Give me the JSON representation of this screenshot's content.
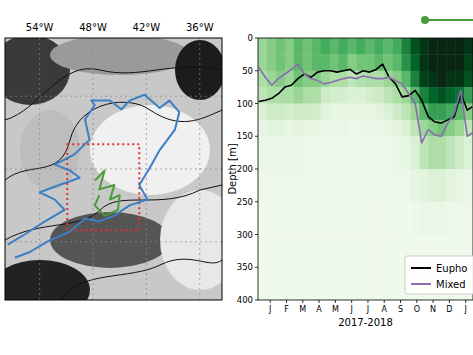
{
  "chart_data": [
    {
      "type": "map",
      "xlim": [
        -57.9,
        -33.5
      ],
      "ylim": [
        46,
        64
      ],
      "xticks": [
        {
          "value": -54,
          "label": "54°W"
        },
        {
          "value": -48,
          "label": "48°W"
        },
        {
          "value": -42,
          "label": "42°W"
        },
        {
          "value": -36,
          "label": "36°W"
        }
      ],
      "yticks": [
        50,
        55,
        60
      ],
      "tick_labels": "x",
      "grid": true,
      "series": [
        {
          "type": "line",
          "color": "#3b7fc4",
          "lon": [
            -57.6,
            -55.7,
            -53.4,
            -51.2,
            -52.3,
            -54.0,
            -51.8,
            -49.5,
            -50.6,
            -52.3,
            -50.1,
            -48.4,
            -48.9,
            -47.8,
            -48.2,
            -46.1,
            -44.8,
            -43.9,
            -42.2,
            -40.5,
            -39.4,
            -38.3,
            -38.8,
            -40.5,
            -41.6,
            -42.8,
            -41.9,
            -43.9,
            -45.6,
            -47.3,
            -48.9,
            -50.6,
            -52.9,
            -55.1,
            -56.8
          ],
          "lat": [
            49.8,
            50.5,
            51.4,
            52.2,
            52.9,
            53.4,
            53.9,
            54.4,
            54.9,
            55.3,
            56.0,
            57.0,
            58.4,
            59.4,
            59.7,
            59.7,
            59.1,
            59.7,
            60.1,
            59.2,
            59.7,
            58.9,
            57.7,
            56.3,
            55.1,
            53.9,
            52.9,
            52.5,
            51.8,
            51.4,
            51.6,
            50.7,
            50.1,
            49.3,
            48.9
          ]
        },
        {
          "type": "line",
          "color": "#4a9a3a",
          "lon": [
            -47.8,
            -46.7,
            -47.3,
            -45.6,
            -46.1,
            -45.0,
            -45.2,
            -46.7,
            -47.8,
            -47.3
          ],
          "lat": [
            54.2,
            54.9,
            53.6,
            53.9,
            52.9,
            53.2,
            52.2,
            51.8,
            52.5,
            53.2
          ]
        }
      ],
      "box": {
        "lon": [
          -50.9,
          -42.8
        ],
        "lat": [
          50.8,
          56.7
        ],
        "color": "#e03030",
        "line_style": "dotted"
      }
    },
    {
      "type": "heatmap",
      "xlabel": "2017-2018",
      "ylabel": "Depth [m]",
      "xlim": [
        -0.75,
        12.45
      ],
      "ylim": [
        400,
        0
      ],
      "xticks": [
        {
          "value": 0,
          "label": "J"
        },
        {
          "value": 1,
          "label": "F"
        },
        {
          "value": 2,
          "label": "M"
        },
        {
          "value": 3,
          "label": "A"
        },
        {
          "value": 4,
          "label": "M"
        },
        {
          "value": 5,
          "label": "J"
        },
        {
          "value": 6,
          "label": "J"
        },
        {
          "value": 7,
          "label": "A"
        },
        {
          "value": 8,
          "label": "S"
        },
        {
          "value": 9,
          "label": "O"
        },
        {
          "value": 10,
          "label": "N"
        },
        {
          "value": 11,
          "label": "D"
        },
        {
          "value": 12,
          "label": "J"
        }
      ],
      "yticks": [
        0,
        50,
        100,
        150,
        200,
        250,
        300,
        350,
        400
      ],
      "legend": "lower right",
      "x_edges": [
        -0.75,
        -0.2,
        0.35,
        0.9,
        1.45,
        2,
        2.55,
        3.1,
        3.65,
        4.2,
        4.75,
        5.3,
        5.85,
        6.4,
        6.95,
        7.5,
        8.05,
        8.6,
        9.15,
        9.7,
        10.25,
        10.8,
        11.35,
        11.9,
        12.45
      ],
      "y_edges": [
        0,
        25,
        50,
        75,
        100,
        125,
        150,
        200,
        250,
        300,
        400
      ],
      "z": [
        [
          0.35,
          0.35,
          0.3,
          0.25,
          0.15,
          0.1,
          0.08,
          0.06,
          0.05,
          0.05
        ],
        [
          0.4,
          0.4,
          0.35,
          0.3,
          0.2,
          0.12,
          0.08,
          0.06,
          0.05,
          0.05
        ],
        [
          0.45,
          0.45,
          0.4,
          0.3,
          0.2,
          0.12,
          0.08,
          0.06,
          0.05,
          0.05
        ],
        [
          0.4,
          0.4,
          0.35,
          0.3,
          0.18,
          0.1,
          0.08,
          0.06,
          0.05,
          0.05
        ],
        [
          0.5,
          0.5,
          0.45,
          0.35,
          0.2,
          0.12,
          0.08,
          0.06,
          0.05,
          0.05
        ],
        [
          0.45,
          0.45,
          0.4,
          0.3,
          0.2,
          0.1,
          0.07,
          0.06,
          0.05,
          0.05
        ],
        [
          0.5,
          0.5,
          0.4,
          0.3,
          0.18,
          0.1,
          0.07,
          0.06,
          0.05,
          0.05
        ],
        [
          0.55,
          0.5,
          0.35,
          0.2,
          0.12,
          0.08,
          0.06,
          0.05,
          0.05,
          0.05
        ],
        [
          0.5,
          0.45,
          0.3,
          0.18,
          0.1,
          0.08,
          0.06,
          0.05,
          0.05,
          0.05
        ],
        [
          0.55,
          0.5,
          0.3,
          0.18,
          0.1,
          0.08,
          0.06,
          0.05,
          0.05,
          0.05
        ],
        [
          0.5,
          0.4,
          0.25,
          0.15,
          0.1,
          0.07,
          0.06,
          0.05,
          0.05,
          0.05
        ],
        [
          0.55,
          0.45,
          0.28,
          0.15,
          0.1,
          0.07,
          0.06,
          0.05,
          0.05,
          0.05
        ],
        [
          0.5,
          0.45,
          0.3,
          0.18,
          0.1,
          0.08,
          0.06,
          0.05,
          0.05,
          0.05
        ],
        [
          0.55,
          0.5,
          0.3,
          0.2,
          0.12,
          0.08,
          0.06,
          0.05,
          0.05,
          0.05
        ],
        [
          0.5,
          0.45,
          0.35,
          0.25,
          0.15,
          0.1,
          0.07,
          0.06,
          0.05,
          0.05
        ],
        [
          0.55,
          0.5,
          0.4,
          0.3,
          0.2,
          0.12,
          0.08,
          0.06,
          0.05,
          0.05
        ],
        [
          0.7,
          0.65,
          0.5,
          0.35,
          0.25,
          0.15,
          0.1,
          0.07,
          0.05,
          0.05
        ],
        [
          0.85,
          0.8,
          0.7,
          0.5,
          0.35,
          0.25,
          0.15,
          0.1,
          0.06,
          0.05
        ],
        [
          0.95,
          0.95,
          0.9,
          0.7,
          0.5,
          0.35,
          0.25,
          0.12,
          0.08,
          0.05
        ],
        [
          1,
          1,
          0.95,
          0.8,
          0.6,
          0.4,
          0.3,
          0.15,
          0.08,
          0.05
        ],
        [
          1,
          1,
          1,
          0.85,
          0.6,
          0.45,
          0.3,
          0.15,
          0.08,
          0.05
        ],
        [
          1,
          1,
          0.95,
          0.8,
          0.55,
          0.4,
          0.25,
          0.12,
          0.07,
          0.05
        ],
        [
          1,
          1,
          0.95,
          0.75,
          0.5,
          0.35,
          0.2,
          0.1,
          0.06,
          0.05
        ],
        [
          0.95,
          0.9,
          0.85,
          0.6,
          0.4,
          0.25,
          0.15,
          0.08,
          0.06,
          0.05
        ]
      ],
      "x": [
        -0.7,
        -0.3,
        0.1,
        0.5,
        0.9,
        1.3,
        1.7,
        2.1,
        2.5,
        2.9,
        3.3,
        3.7,
        4.1,
        4.5,
        4.9,
        5.3,
        5.7,
        6.1,
        6.5,
        6.9,
        7.3,
        7.7,
        8.1,
        8.5,
        8.9,
        9.3,
        9.7,
        10.1,
        10.5,
        10.9,
        11.3,
        11.7,
        12.1,
        12.4
      ],
      "series": [
        {
          "name": "Eupho",
          "type": "line",
          "color": "#000000",
          "values": [
            97,
            95,
            92,
            85,
            75,
            72,
            62,
            55,
            60,
            52,
            50,
            50,
            52,
            50,
            48,
            55,
            50,
            52,
            48,
            40,
            60,
            70,
            90,
            88,
            80,
            95,
            120,
            128,
            130,
            125,
            120,
            85,
            110,
            105
          ]
        },
        {
          "name": "Mixed",
          "type": "line",
          "color": "#8c6bb1",
          "values": [
            45,
            60,
            72,
            62,
            55,
            48,
            40,
            55,
            62,
            65,
            70,
            68,
            65,
            62,
            60,
            62,
            58,
            60,
            62,
            62,
            60,
            65,
            70,
            85,
            100,
            160,
            140,
            148,
            150,
            130,
            115,
            80,
            150,
            145
          ]
        }
      ]
    }
  ]
}
